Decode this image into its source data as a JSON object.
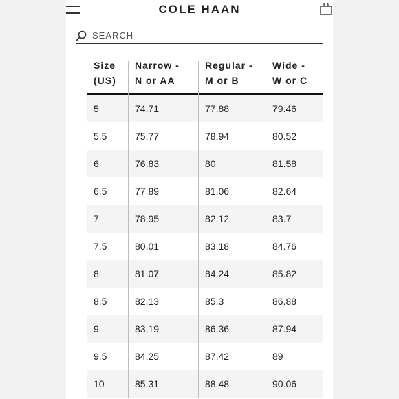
{
  "header": {
    "brand": "COLE HAAN",
    "menu_icon": "hamburger-menu-icon",
    "bag_icon": "shopping-bag-icon"
  },
  "search": {
    "placeholder": "SEARCH",
    "icon": "search-icon"
  },
  "table": {
    "headers": [
      [
        "Size",
        "(US)"
      ],
      [
        "Narrow -",
        "N or AA"
      ],
      [
        "Regular -",
        "M or B"
      ],
      [
        "Wide -",
        "W or C"
      ]
    ],
    "rows": [
      [
        "5",
        "74.71",
        "77.88",
        "79.46"
      ],
      [
        "5.5",
        "75.77",
        "78.94",
        "80.52"
      ],
      [
        "6",
        "76.83",
        "80",
        "81.58"
      ],
      [
        "6.5",
        "77.89",
        "81.06",
        "82.64"
      ],
      [
        "7",
        "78.95",
        "82.12",
        "83.7"
      ],
      [
        "7.5",
        "80.01",
        "83.18",
        "84.76"
      ],
      [
        "8",
        "81.07",
        "84.24",
        "85.82"
      ],
      [
        "8.5",
        "82.13",
        "85.3",
        "86.88"
      ],
      [
        "9",
        "83.19",
        "86.36",
        "87.94"
      ],
      [
        "9.5",
        "84.25",
        "87.42",
        "89"
      ],
      [
        "10",
        "85.31",
        "88.48",
        "90.06"
      ]
    ]
  }
}
